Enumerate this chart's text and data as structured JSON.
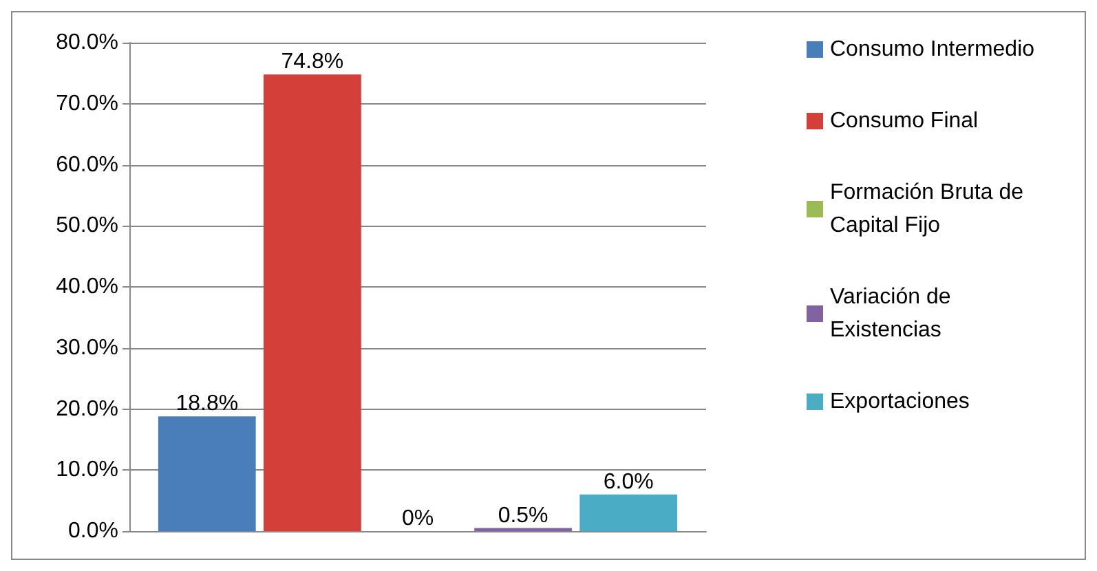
{
  "chart_data": {
    "type": "bar",
    "categories": [
      null
    ],
    "series": [
      {
        "name": "Consumo Intermedio",
        "color": "#4a7ebb",
        "values": [
          18.8
        ],
        "value_labels": [
          "18.8%"
        ]
      },
      {
        "name": "Consumo Final",
        "color": "#d43f3a",
        "values": [
          74.8
        ],
        "value_labels": [
          "74.8%"
        ]
      },
      {
        "name": "Formación Bruta de Capital Fijo",
        "color": "#9bbb59",
        "values": [
          0
        ],
        "value_labels": [
          "0%"
        ]
      },
      {
        "name": "Variación de Existencias",
        "color": "#8064a2",
        "values": [
          0.5
        ],
        "value_labels": [
          "0.5%"
        ]
      },
      {
        "name": "Exportaciones",
        "color": "#4bacc6",
        "values": [
          6.0
        ],
        "value_labels": [
          "6.0%"
        ]
      }
    ],
    "ylim": [
      0,
      80
    ],
    "yticks": [
      {
        "value": 0,
        "label": "0.0%"
      },
      {
        "value": 10,
        "label": "10.0%"
      },
      {
        "value": 20,
        "label": "20.0%"
      },
      {
        "value": 30,
        "label": "30.0%"
      },
      {
        "value": 40,
        "label": "40.0%"
      },
      {
        "value": 50,
        "label": "50.0%"
      },
      {
        "value": 60,
        "label": "60.0%"
      },
      {
        "value": 70,
        "label": "70.0%"
      },
      {
        "value": 80,
        "label": "80.0%"
      }
    ],
    "grid": "y",
    "legend": "right"
  }
}
